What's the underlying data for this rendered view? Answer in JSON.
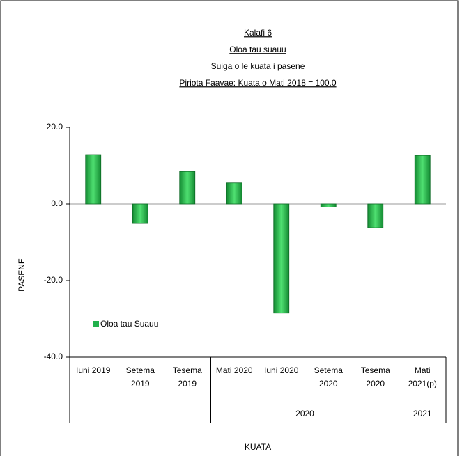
{
  "chart_data": {
    "type": "bar",
    "title": "Kalafi 6",
    "subtitle": "Oloa tau suauu",
    "description": "Suiga o le kuata i pasene",
    "base_period": "Piriota Faavae: Kuata o Mati 2018 = 100.0",
    "y_label": "PASENE",
    "x_label": "KUATA",
    "categories": [
      "Iuni 2019",
      "Setema\n2019",
      "Tesema\n2019",
      "Mati 2020",
      "Iuni 2020",
      "Setema\n2020",
      "Tesema\n2020",
      "Mati\n2021(p)"
    ],
    "groups": [
      {
        "label": null,
        "span": 3
      },
      {
        "label": "2020",
        "span": 4
      },
      {
        "label": "2021",
        "span": 1
      }
    ],
    "series": [
      {
        "name": "Oloa tau Suauu",
        "color": "#22b14c",
        "values": [
          12.9,
          -5.1,
          8.5,
          5.5,
          -28.5,
          -0.8,
          -6.2,
          12.7
        ]
      }
    ],
    "ylim": [
      -40,
      20
    ],
    "yticks": [
      {
        "value": -40,
        "label": "-40.0"
      },
      {
        "value": -20,
        "label": "-20.0"
      },
      {
        "value": 0,
        "label": "0.0"
      },
      {
        "value": 20,
        "label": "20.0"
      }
    ],
    "legend": "lower-left"
  }
}
